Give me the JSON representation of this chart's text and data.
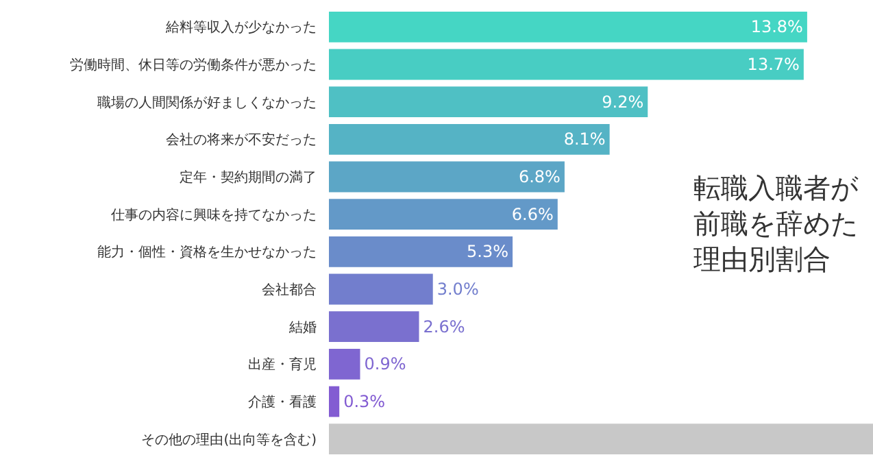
{
  "chart_data": {
    "type": "bar",
    "orientation": "horizontal",
    "title": "転職入職者が前職を辞めた理由別割合",
    "categories": [
      "給料等収入が少なかった",
      "労働時間、休日等の労働条件が悪かった",
      "職場の人間関係が好ましくなかった",
      "会社の将来が不安だった",
      "定年・契約期間の満了",
      "仕事の内容に興味を持てなかった",
      "能力・個性・資格を生かせなかった",
      "会社都合",
      "結婚",
      "出産・育児",
      "介護・看護",
      "その他の理由(出向等を含む)"
    ],
    "values": [
      13.8,
      13.7,
      9.2,
      8.1,
      6.8,
      6.6,
      5.3,
      3.0,
      2.6,
      0.9,
      0.3,
      15.7
    ],
    "value_labels": [
      "13.8%",
      "13.7%",
      "9.2%",
      "8.1%",
      "6.8%",
      "6.6%",
      "5.3%",
      "3.0%",
      "2.6%",
      "0.9%",
      "0.3%",
      null
    ],
    "colors": [
      "#45d6c4",
      "#48cdc3",
      "#4fc0c4",
      "#55b3c5",
      "#5ca6c6",
      "#6399c8",
      "#6a8cca",
      "#727ecd",
      "#7a70cf",
      "#7f66d1",
      "#835cd2",
      "#c8c8c8"
    ],
    "xlim": [
      0,
      15.7
    ],
    "tick_labels": "y"
  }
}
